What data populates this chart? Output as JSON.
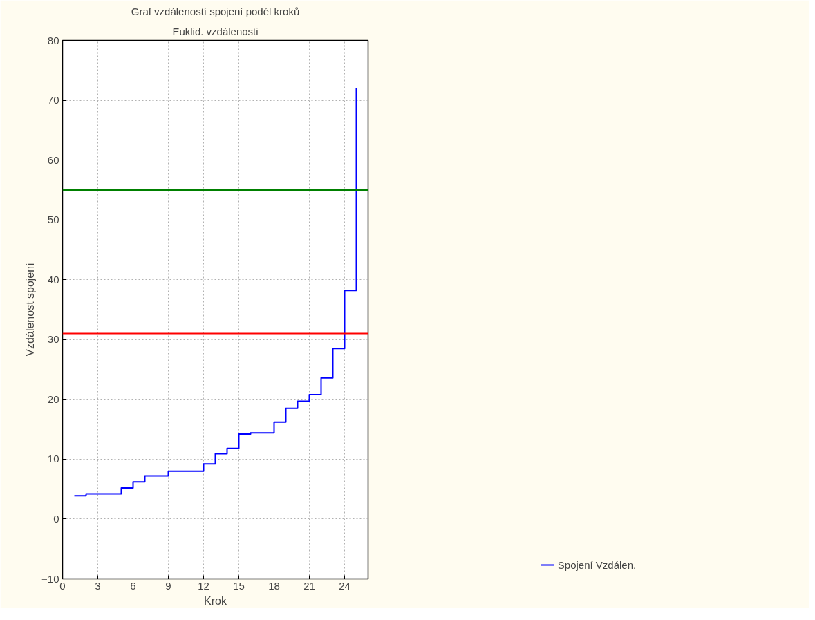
{
  "chart_data": {
    "type": "step",
    "title": "Graf vzdáleností spojení podél kroků",
    "subtitle": "Euklid. vzdálenosti",
    "xlabel": "Krok",
    "ylabel": "Vzdálenost spojení",
    "x": [
      1,
      2,
      3,
      4,
      5,
      6,
      7,
      8,
      9,
      10,
      11,
      12,
      13,
      14,
      15,
      16,
      17,
      18,
      19,
      20,
      21,
      22,
      23,
      24,
      25
    ],
    "series": [
      {
        "name": "Spojení Vzdálen.",
        "color": "#0000ff",
        "values": [
          3.9,
          4.2,
          4.2,
          4.2,
          5.2,
          6.2,
          7.2,
          7.2,
          8.0,
          8.0,
          8.0,
          9.2,
          10.9,
          11.8,
          14.2,
          14.4,
          14.4,
          16.2,
          18.5,
          19.7,
          20.8,
          23.6,
          28.5,
          38.2,
          72.0
        ]
      }
    ],
    "ref_lines": [
      {
        "axis": "y",
        "value": 31,
        "label": null,
        "color": "#ff0000"
      },
      {
        "axis": "y",
        "value": 55,
        "label": null,
        "color": "#008000"
      }
    ],
    "xlim": [
      0,
      26
    ],
    "ylim": [
      -10,
      80
    ],
    "xticks": [
      0,
      3,
      6,
      9,
      12,
      15,
      18,
      21,
      24
    ],
    "yticks": [
      -10,
      0,
      10,
      20,
      30,
      40,
      50,
      60,
      70,
      80
    ],
    "grid": true,
    "legend": "bottom right",
    "line_style": "solid",
    "marker": "none"
  }
}
